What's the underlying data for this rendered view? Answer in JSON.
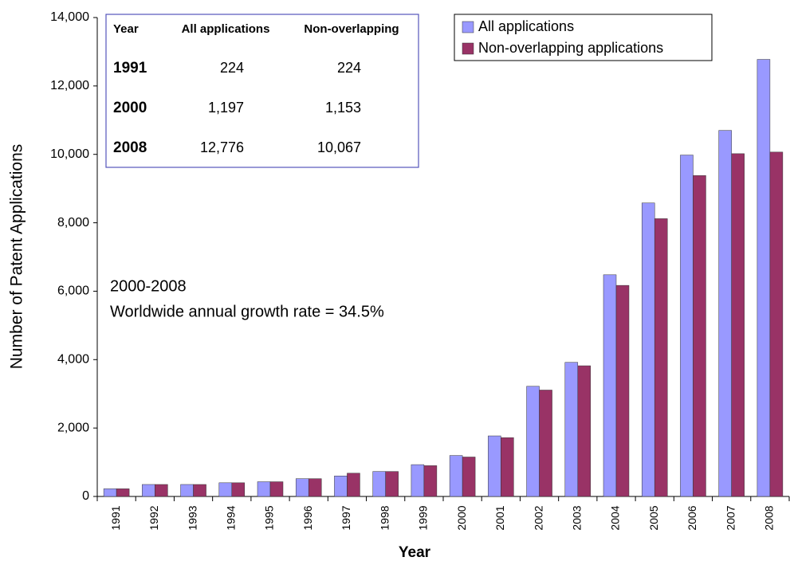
{
  "chart_data": {
    "type": "bar",
    "x_label": "Year",
    "y_label": "Number of Patent Applications",
    "categories": [
      "1991",
      "1992",
      "1993",
      "1994",
      "1995",
      "1996",
      "1997",
      "1998",
      "1999",
      "2000",
      "2001",
      "2002",
      "2003",
      "2004",
      "2005",
      "2006",
      "2007",
      "2008"
    ],
    "series": [
      {
        "name": "All applications",
        "color": "#9999ff",
        "values": [
          224,
          350,
          350,
          400,
          430,
          520,
          600,
          730,
          930,
          1197,
          1770,
          3220,
          3920,
          6480,
          8580,
          9980,
          10700,
          12776
        ]
      },
      {
        "name": "Non-overlapping applications",
        "color": "#993366",
        "values": [
          224,
          350,
          350,
          400,
          430,
          520,
          680,
          730,
          900,
          1153,
          1720,
          3110,
          3820,
          6170,
          8120,
          9380,
          10020,
          10067
        ]
      }
    ],
    "ylim": [
      0,
      14000
    ],
    "yticks": [
      0,
      {
        "value": 2000,
        "label": "2,000"
      },
      {
        "value": 4000,
        "label": "4,000"
      },
      {
        "value": 6000,
        "label": "6,000"
      },
      {
        "value": 8000,
        "label": "8,000"
      },
      {
        "value": 10000,
        "label": "10,000"
      },
      {
        "value": 12000,
        "label": "12,000"
      },
      {
        "value": 14000,
        "label": "14,000"
      }
    ],
    "grid": false,
    "legend": "top-right",
    "annotation": [
      "2000-2008",
      "Worldwide annual growth rate = 34.5%"
    ],
    "table": {
      "header": [
        "Year",
        "All applications",
        "Non-overlapping"
      ],
      "rows": [
        [
          "1991",
          "224",
          "224"
        ],
        [
          "2000",
          "1,197",
          "1,153"
        ],
        [
          "2008",
          "12,776",
          "10,067"
        ]
      ]
    }
  }
}
